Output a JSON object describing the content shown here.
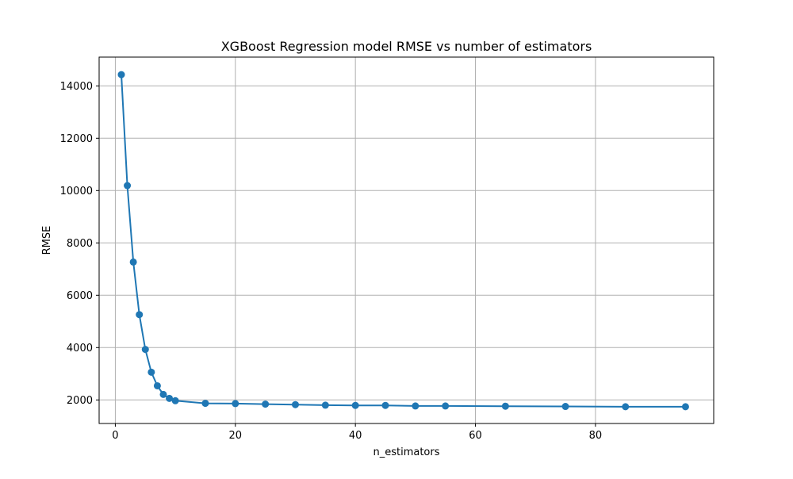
{
  "chart_data": {
    "type": "line",
    "title": "XGBoost Regression model RMSE vs number of estimators",
    "xlabel": "n_estimators",
    "ylabel": "RMSE",
    "xlim": [
      -2.7,
      99.7
    ],
    "ylim": [
      1100,
      15100
    ],
    "xticks": [
      0,
      20,
      40,
      60,
      80
    ],
    "yticks": [
      2000,
      4000,
      6000,
      8000,
      10000,
      12000,
      14000
    ],
    "grid": true,
    "series": [
      {
        "color": "#1f77b4",
        "marker": "circle",
        "x": [
          1,
          2,
          3,
          4,
          5,
          6,
          7,
          8,
          9,
          10,
          15,
          20,
          25,
          30,
          35,
          40,
          45,
          50,
          55,
          65,
          75,
          85,
          95
        ],
        "y": [
          14430,
          10190,
          7270,
          5260,
          3930,
          3060,
          2540,
          2210,
          2060,
          1970,
          1870,
          1860,
          1840,
          1820,
          1800,
          1790,
          1790,
          1770,
          1770,
          1760,
          1750,
          1740,
          1740
        ]
      }
    ]
  }
}
